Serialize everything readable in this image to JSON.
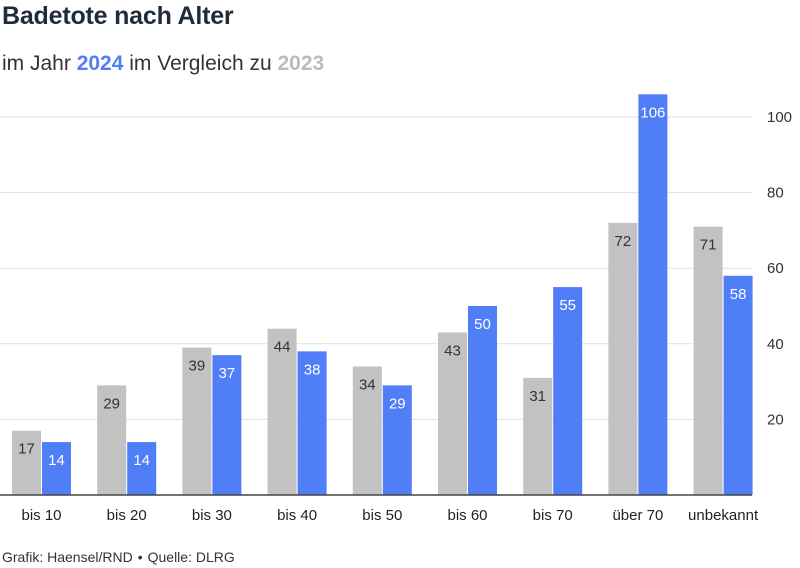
{
  "title": "Badetote nach Alter",
  "subtitle": {
    "prefix": "im Jahr ",
    "year_new": "2024",
    "middle": " im Vergleich zu ",
    "year_old": "2023"
  },
  "footer": {
    "credit": "Grafik: Haensel/RND",
    "separator": "•",
    "source": "Quelle: DLRG"
  },
  "colors": {
    "series_2023": "#c2c2c2",
    "series_2024": "#4f7ef7",
    "grid": "#e1e1e1",
    "axis": "#444444"
  },
  "chart_data": {
    "type": "bar",
    "title": "Badetote nach Alter",
    "categories": [
      "bis 10",
      "bis 20",
      "bis 30",
      "bis 40",
      "bis 50",
      "bis 60",
      "bis 70",
      "über 70",
      "unbekannt"
    ],
    "series": [
      {
        "name": "2023",
        "values": [
          17,
          29,
          39,
          44,
          34,
          43,
          31,
          72,
          71
        ]
      },
      {
        "name": "2024",
        "values": [
          14,
          14,
          37,
          38,
          29,
          50,
          55,
          106,
          58
        ]
      }
    ],
    "yticks": [
      20,
      40,
      60,
      80,
      100
    ],
    "ylim": [
      0,
      100
    ],
    "grid": true,
    "yaxis_position": "right",
    "data_labels": true
  }
}
